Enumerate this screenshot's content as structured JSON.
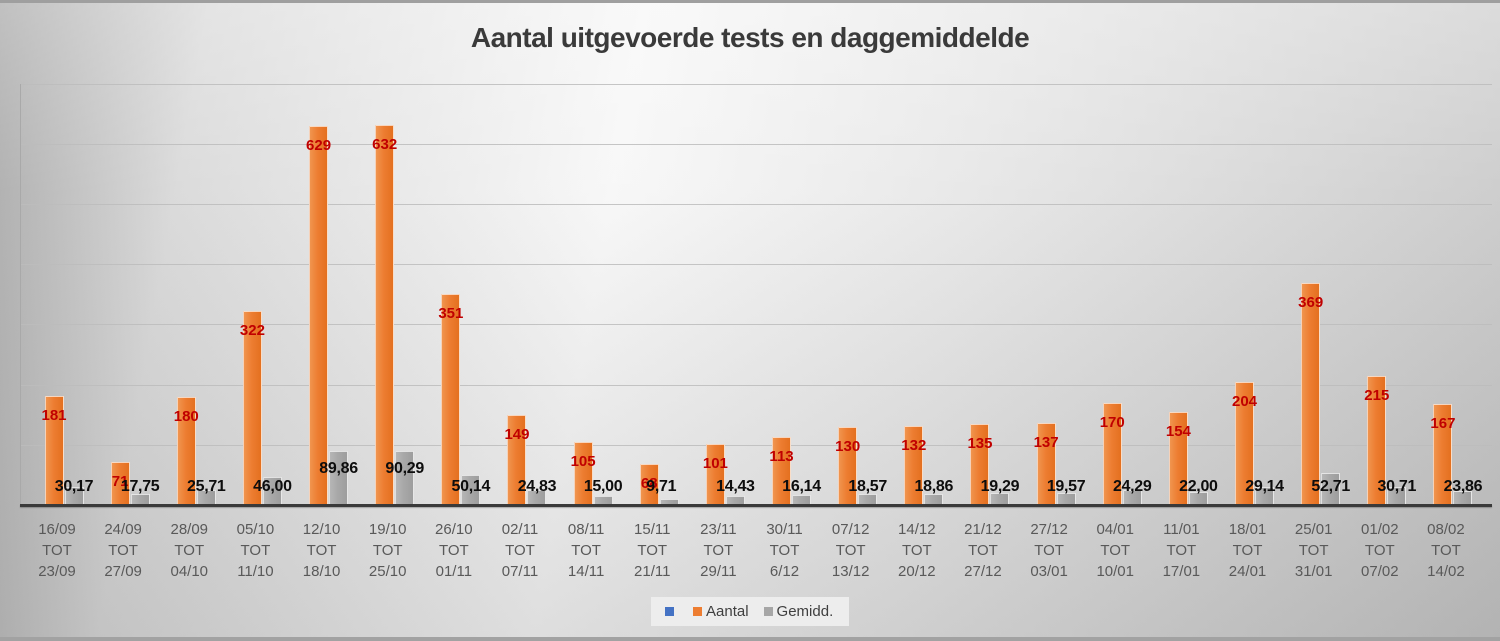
{
  "title": "Aantal uitgevoerde tests en daggemiddelde",
  "legend": [
    {
      "label": "",
      "color": "#4472C4"
    },
    {
      "label": "Aantal",
      "color": "#ED7D31"
    },
    {
      "label": "Gemidd.",
      "color": "#A6A6A6"
    }
  ],
  "colors": {
    "bar_aantal": "#ED7D31",
    "bar_gemidd": "#A6A6A6",
    "legend_blue": "#4472C4",
    "label_aantal": "#C00000",
    "label_gemidd": "#0D0D0D",
    "axis_labels": "#595959",
    "title_text": "#3A3A3A",
    "gridline": "#BCBCBC",
    "axis_line": "#3A3A3A"
  },
  "chart_data": {
    "type": "bar",
    "title": "Aantal uitgevoerde tests en daggemiddelde",
    "xlabel": "",
    "ylabel": "",
    "ylim": [
      0,
      700
    ],
    "gridline_values": [
      100,
      200,
      300,
      400,
      500,
      600,
      700
    ],
    "grid": true,
    "y_axis_labels_visible": false,
    "legend_position": "bottom",
    "categories": [
      "16/09 TOT 23/09",
      "24/09 TOT 27/09",
      "28/09 TOT 04/10",
      "05/10 TOT 11/10",
      "12/10 TOT 18/10",
      "19/10 TOT 25/10",
      "26/10 TOT 01/11",
      "02/11 TOT 07/11",
      "08/11 TOT 14/11",
      "15/11 TOT 21/11",
      "23/11 TOT 29/11",
      "30/11 TOT 6/12",
      "07/12 TOT 13/12",
      "14/12 TOT 20/12",
      "21/12 TOT 27/12",
      "27/12 TOT 03/01",
      "04/01 TOT 10/01",
      "11/01 TOT 17/01",
      "18/01 TOT 24/01",
      "25/01 TOT 31/01",
      "01/02 TOT 07/02",
      "08/02 TOT 14/02"
    ],
    "series": [
      {
        "name": "",
        "color": "#4472C4",
        "values": []
      },
      {
        "name": "Aantal",
        "color": "#ED7D31",
        "label_color": "#C00000",
        "values": [
          181,
          71,
          180,
          322,
          629,
          632,
          351,
          149,
          105,
          68,
          101,
          113,
          130,
          132,
          135,
          137,
          170,
          154,
          204,
          369,
          215,
          167
        ]
      },
      {
        "name": "Gemidd.",
        "color": "#A6A6A6",
        "label_color": "#0D0D0D",
        "values": [
          30.17,
          17.75,
          25.71,
          46.0,
          89.86,
          90.29,
          50.14,
          24.83,
          15.0,
          9.71,
          14.43,
          16.14,
          18.57,
          18.86,
          19.29,
          19.57,
          24.29,
          22.0,
          29.14,
          52.71,
          30.71,
          23.86
        ],
        "values_display": [
          "30,17",
          "17,75",
          "25,71",
          "46,00",
          "89,86",
          "90,29",
          "50,14",
          "24,83",
          "15,00",
          "9,71",
          "14,43",
          "16,14",
          "18,57",
          "18,86",
          "19,29",
          "19,57",
          "24,29",
          "22,00",
          "29,14",
          "52,71",
          "30,71",
          "23,86"
        ]
      }
    ]
  }
}
